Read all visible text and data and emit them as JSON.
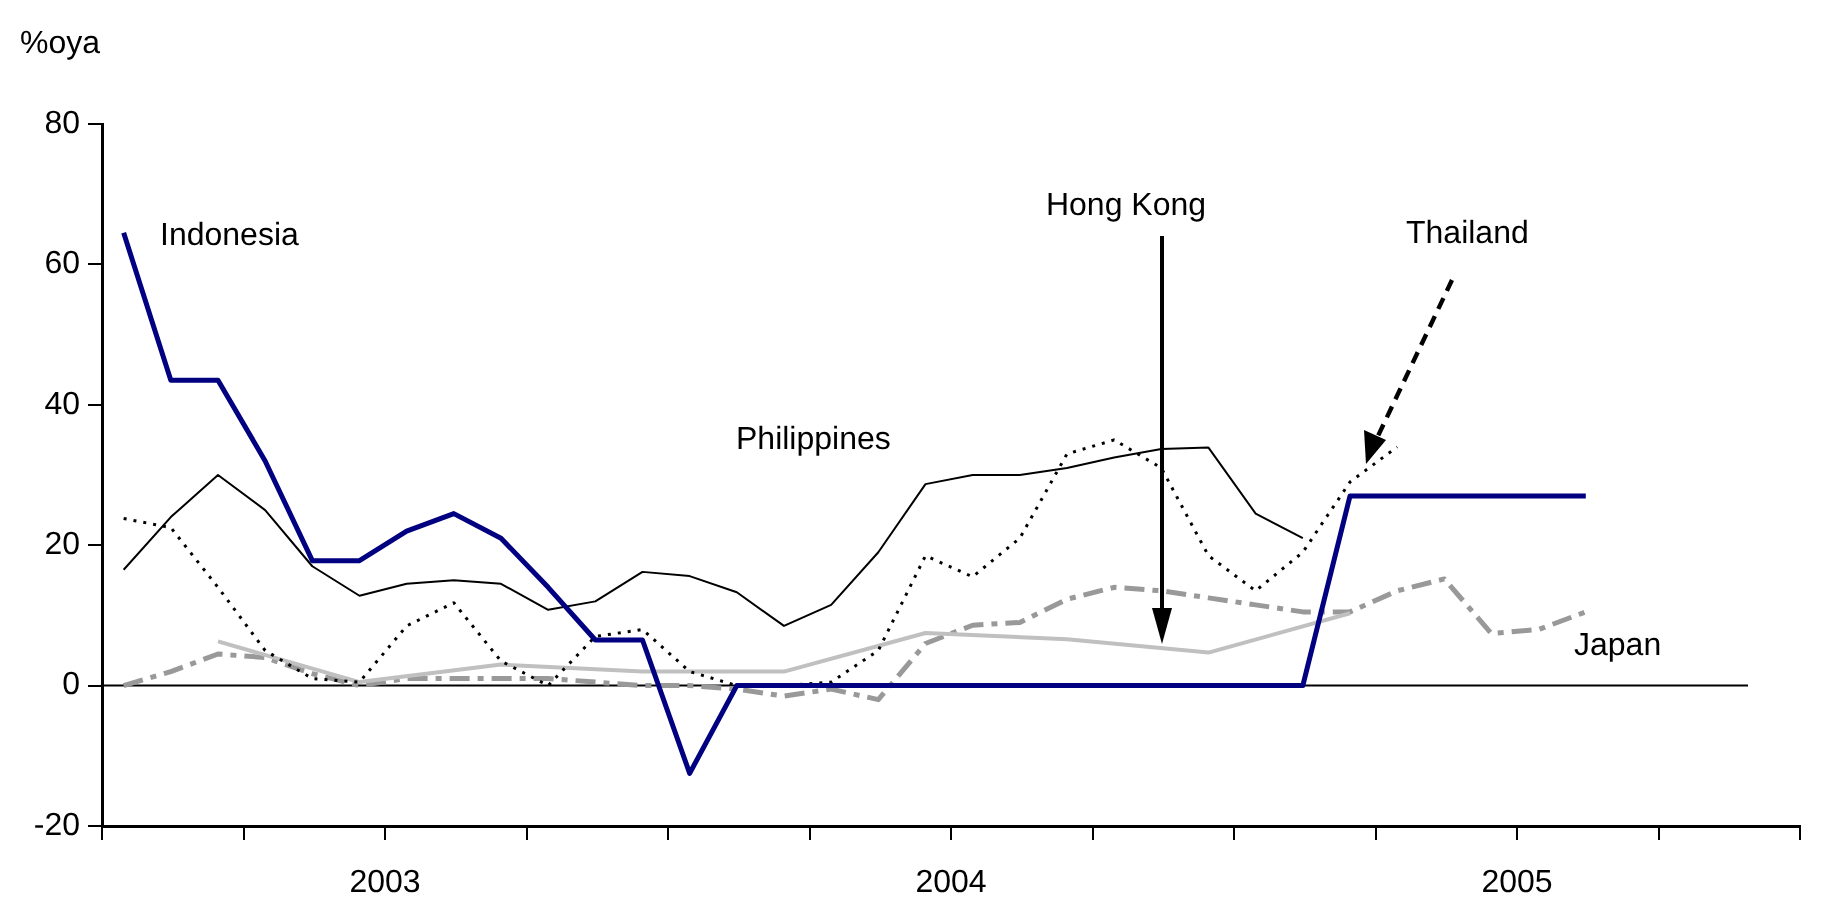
{
  "chart_data": {
    "type": "line",
    "ylabel": "%oya",
    "x": [
      "2003-01-15",
      "2003-02-15",
      "2003-03-15",
      "2003-04-15",
      "2003-05-15",
      "2003-06-15",
      "2003-07-15",
      "2003-08-15",
      "2003-09-15",
      "2003-10-15",
      "2003-11-15",
      "2003-12-15",
      "2004-01-15",
      "2004-02-15",
      "2004-03-15",
      "2004-04-15",
      "2004-05-15",
      "2004-06-15",
      "2004-07-15",
      "2004-08-15",
      "2004-09-15",
      "2004-10-15",
      "2004-11-15",
      "2004-12-15",
      "2005-01-15",
      "2005-02-15",
      "2005-03-15",
      "2005-04-15",
      "2005-05-15",
      "2005-06-15",
      "2005-07-15",
      "2005-08-15"
    ],
    "series": [
      {
        "name": "Indonesia",
        "color": "#000080",
        "values": [
          64.5,
          43.5,
          43.5,
          32,
          17.8,
          17.8,
          22,
          24.5,
          21,
          14,
          6.5,
          6.5,
          -12.5,
          0,
          0,
          0,
          0,
          0,
          0,
          0,
          0,
          0,
          0,
          0,
          0,
          0,
          27,
          27,
          27,
          27,
          27,
          27
        ]
      },
      {
        "name": "Philippines",
        "color": "#000000",
        "values": [
          16.5,
          24,
          30,
          25,
          17,
          12.8,
          14.5,
          15,
          14.5,
          10.8,
          12,
          16.2,
          15.6,
          13.3,
          8.5,
          11.5,
          19,
          28.7,
          30,
          30,
          31,
          32.5,
          33.7,
          33.9,
          24.5,
          21,
          null,
          null,
          null,
          null,
          null,
          null
        ]
      },
      {
        "name": "Thailand",
        "color": "#000000",
        "line_style": "dotted",
        "values": [
          23.8,
          22.5,
          14,
          5,
          1,
          0.5,
          8.5,
          11.8,
          3.5,
          0,
          7,
          8,
          2,
          0,
          0,
          0.5,
          5,
          18.5,
          15.5,
          21,
          33,
          35,
          31,
          18.5,
          13.5,
          19,
          29,
          34,
          null,
          null,
          null,
          null
        ]
      },
      {
        "name": "Hong Kong",
        "color": "#c0c0c0",
        "x": [
          "2003-03-15",
          "2003-06-15",
          "2003-09-15",
          "2003-12-15",
          "2004-03-15",
          "2004-06-15",
          "2004-09-15",
          "2004-12-15",
          "2005-03-15"
        ],
        "values": [
          6.3,
          0.5,
          3,
          2,
          2,
          7.5,
          6.6,
          4.7,
          10.3
        ]
      },
      {
        "name": "Japan",
        "color": "#999999",
        "line_style": "dashed",
        "values": [
          0,
          2,
          4.5,
          4,
          1.7,
          0,
          1,
          1,
          1,
          1,
          0.5,
          0,
          0,
          -0.5,
          -1.5,
          -0.5,
          -2,
          6,
          8.6,
          9,
          12.3,
          14,
          13.5,
          12.5,
          11.5,
          10.5,
          10.5,
          13.5,
          15.2,
          7.4,
          8,
          10.5
        ]
      }
    ],
    "xlim": [
      "2003-01",
      "2006-01"
    ],
    "xticks": [
      {
        "value": "2003-01",
        "label": null
      },
      {
        "value": "2003-04",
        "label": null
      },
      {
        "value": "2003-07",
        "label": "2003"
      },
      {
        "value": "2003-10",
        "label": null
      },
      {
        "value": "2004-01",
        "label": null
      },
      {
        "value": "2004-04",
        "label": null
      },
      {
        "value": "2004-07",
        "label": "2004"
      },
      {
        "value": "2004-10",
        "label": null
      },
      {
        "value": "2005-01",
        "label": null
      },
      {
        "value": "2005-04",
        "label": null
      },
      {
        "value": "2005-07",
        "label": "2005"
      },
      {
        "value": "2005-10",
        "label": null
      },
      {
        "value": "2006-01",
        "label": null
      }
    ],
    "ylim": [
      -20,
      80
    ],
    "yticks": [
      -20,
      0,
      20,
      40,
      60,
      80
    ],
    "ref_lines": [
      {
        "axis": "y",
        "value": 0
      }
    ],
    "grid": false,
    "legend": false,
    "marker": "none"
  }
}
